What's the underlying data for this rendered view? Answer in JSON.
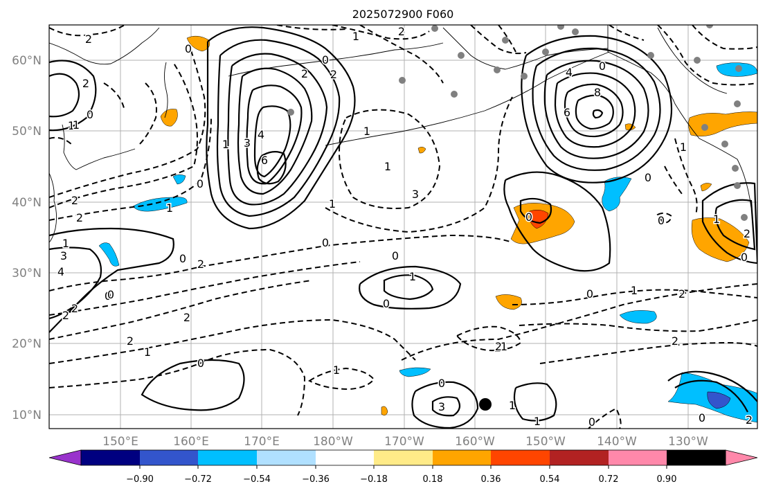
{
  "title": "2025072900 F060",
  "lat_labels": [
    "60°N",
    "50°N",
    "40°N",
    "30°N",
    "20°N",
    "10°N"
  ],
  "lon_labels": [
    "150°E",
    "160°E",
    "170°E",
    "180°W",
    "170°W",
    "160°W",
    "150°W",
    "140°W",
    "130°W"
  ],
  "colorbar": {
    "tick_labels": [
      "−0.90",
      "−0.72",
      "−0.54",
      "−0.36",
      "−0.18",
      "0.18",
      "0.36",
      "0.54",
      "0.72",
      "0.90"
    ],
    "colors": [
      "#9933cc",
      "#000080",
      "#3355cc",
      "#00bfff",
      "#b0e0ff",
      "#ffffff",
      "#ffeb88",
      "#ffa500",
      "#ff4500",
      "#b22222",
      "#ff88aa"
    ]
  },
  "contour_labels": [
    "2",
    "0",
    "0",
    "2",
    "1",
    "2",
    "2",
    "1",
    "0",
    "2",
    "2",
    "0",
    "2",
    "3",
    "4",
    "6",
    "1",
    "1",
    "3",
    "0",
    "0",
    "1",
    "1",
    "3",
    "0",
    "1",
    "4",
    "8",
    "6",
    "0",
    "0",
    "1",
    "1",
    "2",
    "2",
    "0",
    "1",
    "1",
    "0",
    "2",
    "0",
    "0",
    "2",
    "0",
    "1",
    "3",
    "4",
    "2",
    "2",
    "0",
    "2",
    "2",
    "1",
    "2",
    "1",
    "0",
    "1",
    "0",
    "1",
    "0",
    "0",
    "1",
    "1",
    "2",
    "2",
    "0"
  ]
}
